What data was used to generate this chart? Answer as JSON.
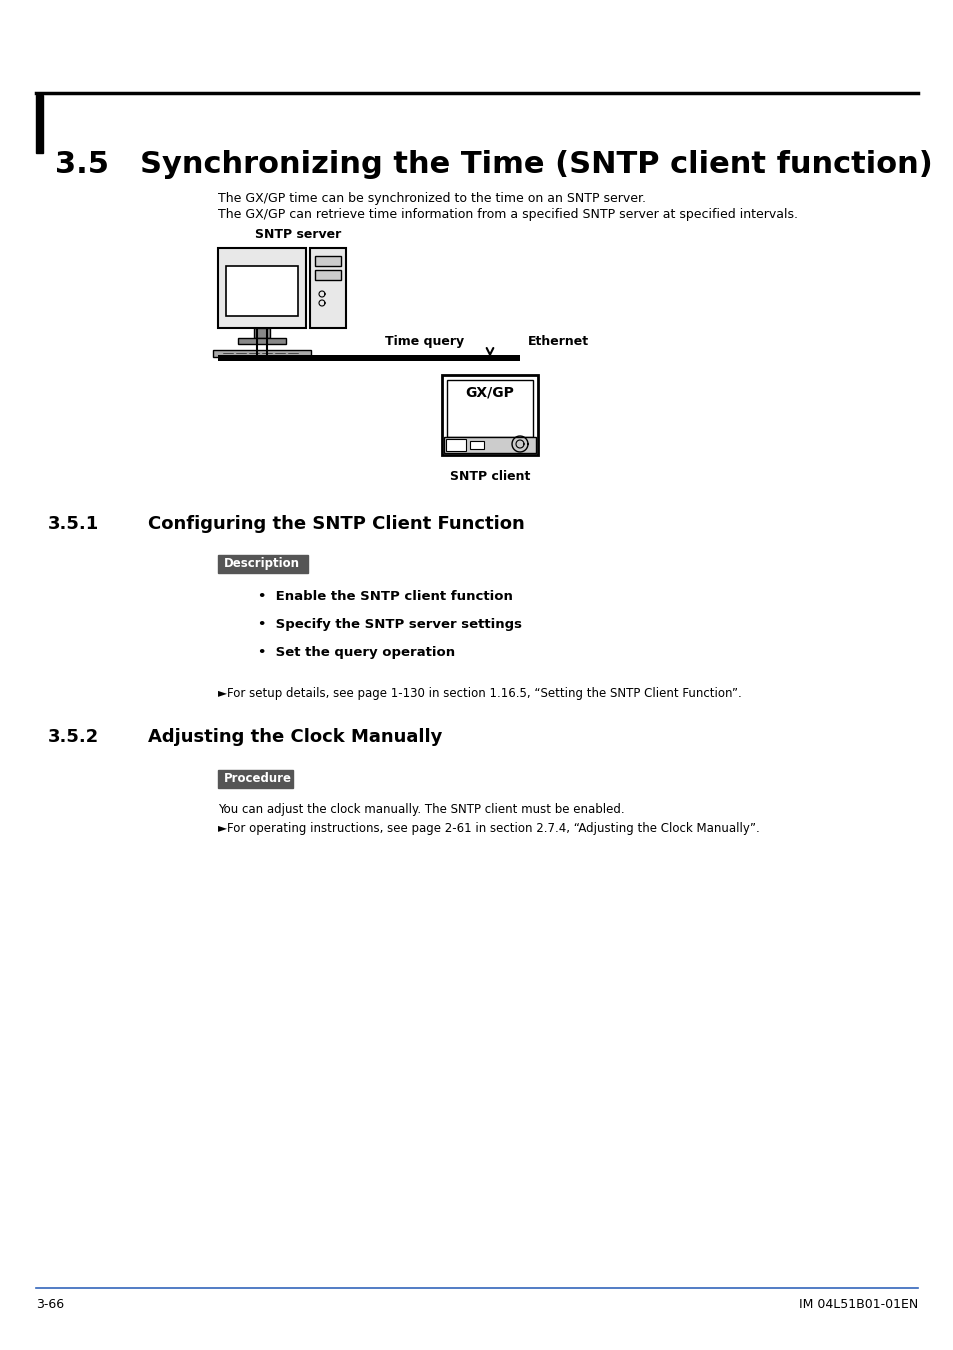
{
  "bg_color": "#ffffff",
  "title_section": "3.5",
  "title_text": "Synchronizing the Time (SNTP client function)",
  "title_fontsize": 22,
  "page_num": "3-66",
  "footer_ref": "IM 04L51B01-01EN",
  "footer_line_color": "#3366bb",
  "intro_line1": "The GX/GP time can be synchronized to the time on an SNTP server.",
  "intro_line2": "The GX/GP can retrieve time information from a specified SNTP server at specified intervals.",
  "sntp_server_label": "SNTP server",
  "time_query_label": "Time query",
  "ethernet_label": "Ethernet",
  "gxgp_label": "GX/GP",
  "sntp_client_label": "SNTP client",
  "sub1_num": "3.5.1",
  "sub1_title": "Configuring the SNTP Client Function",
  "desc_tag": "Description",
  "desc_tag_bg": "#555555",
  "desc_tag_fg": "#ffffff",
  "bullet1": "Enable the SNTP client function",
  "bullet2": "Specify the SNTP server settings",
  "bullet3": "Set the query operation",
  "ref1": "►For setup details, see page 1-130 in section 1.16.5, “Setting the SNTP Client Function”.",
  "sub2_num": "3.5.2",
  "sub2_title": "Adjusting the Clock Manually",
  "proc_tag": "Procedure",
  "proc_tag_bg": "#555555",
  "proc_tag_fg": "#ffffff",
  "proc_text": "You can adjust the clock manually. The SNTP client must be enabled.",
  "ref2": "►For operating instructions, see page 2-61 in section 2.7.4, “Adjusting the Clock Manually”."
}
